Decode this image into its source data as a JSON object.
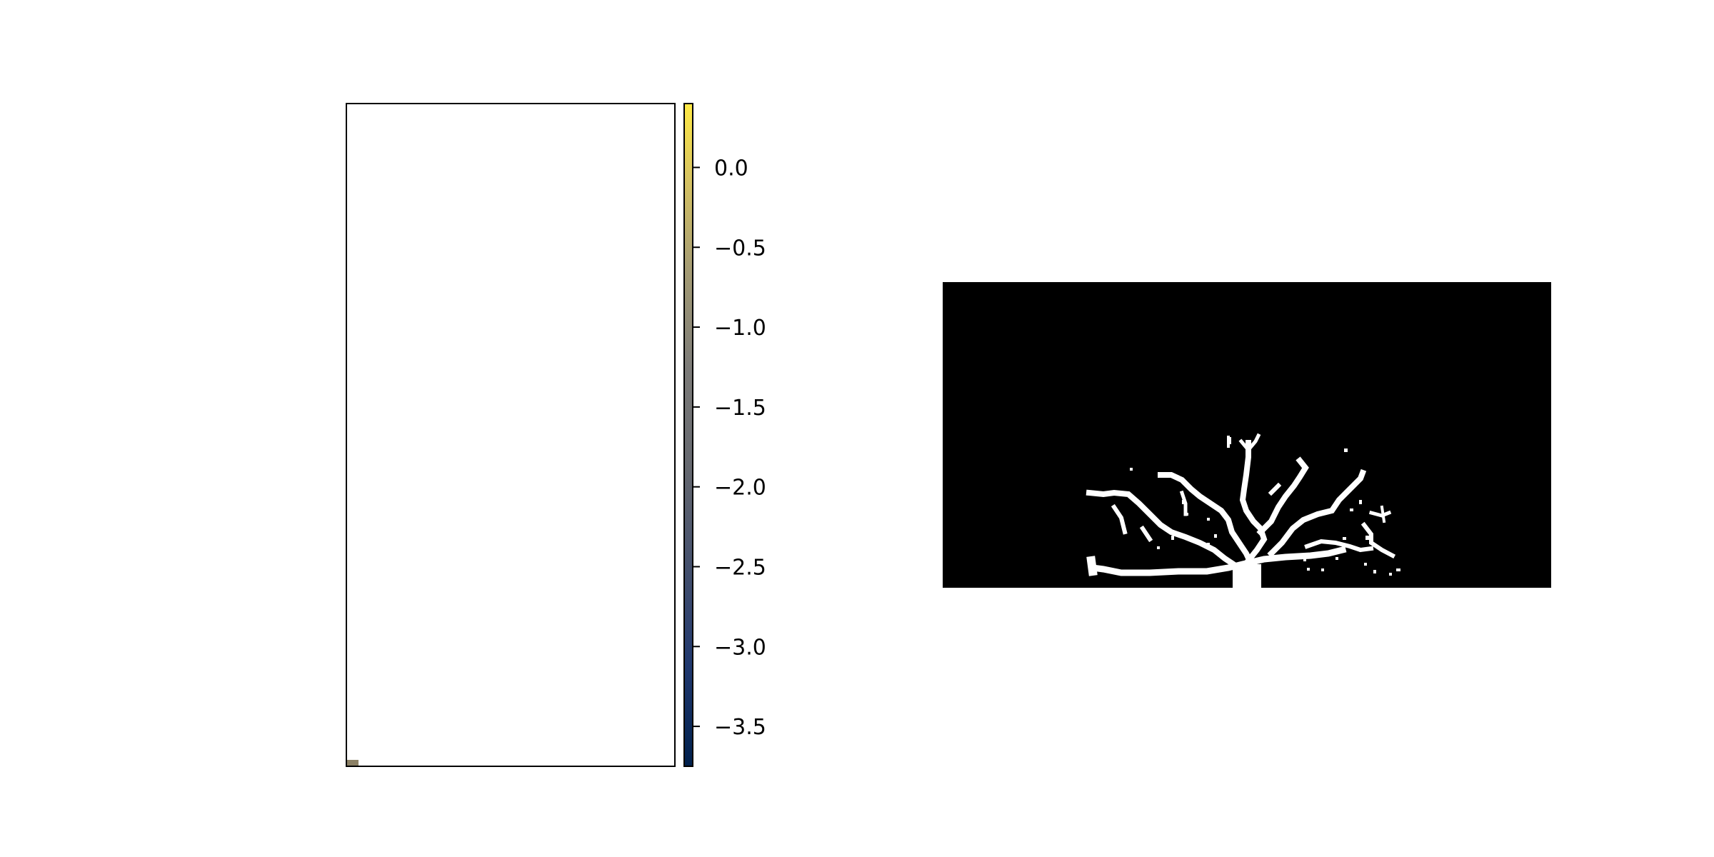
{
  "chart_data": [
    {
      "type": "heatmap",
      "panel": "left",
      "description_visible": "mostly blank heatmap with single small cell at bottom-left",
      "cells": [
        {
          "row": "bottom",
          "col": "left",
          "value": -1.25
        }
      ],
      "colormap": "cividis",
      "colorbar": {
        "range": [
          -3.75,
          0.4
        ],
        "ticks": [
          0.0,
          -0.5,
          -1.0,
          -1.5,
          -2.0,
          -2.5,
          -3.0,
          -3.5
        ],
        "tick_labels": [
          "0.0",
          "−0.5",
          "−1.0",
          "−1.5",
          "−2.0",
          "−2.5",
          "−3.0",
          "−3.5"
        ],
        "color_low": "#00204c",
        "color_mid": "#7c7b78",
        "color_high": "#ffe945"
      },
      "axes": "frame only, no tick labels"
    },
    {
      "type": "heatmap",
      "panel": "right",
      "binary": true,
      "colors": {
        "background": "#000000",
        "foreground": "#ffffff"
      },
      "content": "binary mask of a branching tree-like structure",
      "axes": "off"
    }
  ]
}
